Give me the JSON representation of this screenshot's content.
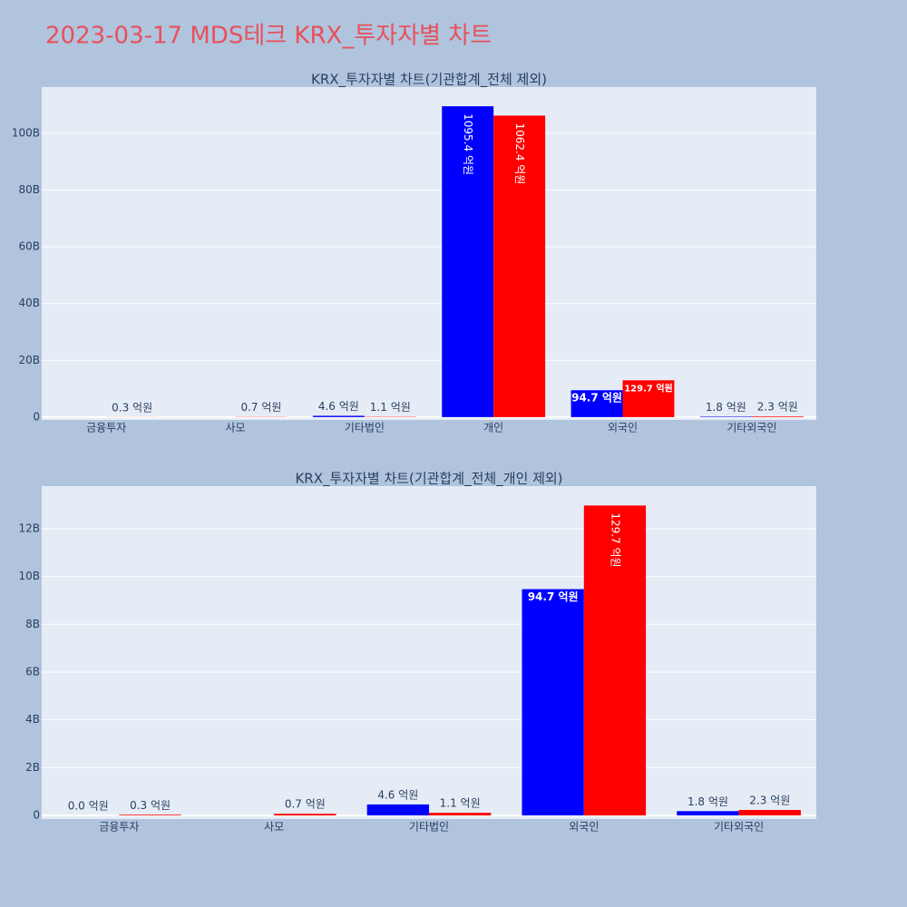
{
  "title": "2023-03-17 MDS테크 KRX_투자자별 차트",
  "chart_data": [
    {
      "type": "bar",
      "title": "KRX_투자자별 차트(기관합계_전체 제외)",
      "categories": [
        "금융투자",
        "사모",
        "기타법인",
        "개인",
        "외국인",
        "기타외국인"
      ],
      "series": [
        {
          "color": "#0000ff",
          "values": [
            0,
            null,
            460000000,
            109540000000,
            9470000000,
            180000000
          ],
          "value_labels": [
            null,
            null,
            "4.6 억원",
            "1095.4 억원",
            "94.7 억원",
            "1.8 억원"
          ]
        },
        {
          "color": "#ff0000",
          "values": [
            30000000,
            70000000,
            110000000,
            106240000000,
            12970000000,
            230000000
          ],
          "value_labels": [
            "0.3 억원",
            "0.7 억원",
            "1.1 억원",
            "1062.4 억원",
            "129.7 억원",
            "2.3 억원"
          ]
        }
      ],
      "ylim": [
        -1000000000,
        116300000000
      ],
      "yticks": [
        0,
        {
          "value": 20000000000,
          "label": "20B"
        },
        {
          "value": 40000000000,
          "label": "40B"
        },
        {
          "value": 60000000000,
          "label": "60B"
        },
        {
          "value": 80000000000,
          "label": "80B"
        },
        {
          "value": 100000000000,
          "label": "100B"
        }
      ],
      "grid": true
    },
    {
      "type": "bar",
      "title": "KRX_투자자별 차트(기관합계_전체_개인 제외)",
      "categories": [
        "금융투자",
        "사모",
        "기타법인",
        "외국인",
        "기타외국인"
      ],
      "series": [
        {
          "color": "#0000ff",
          "values": [
            0,
            null,
            460000000,
            9470000000,
            180000000
          ],
          "value_labels": [
            "0.0 억원",
            null,
            "4.6 억원",
            "94.7 억원",
            "1.8 억원"
          ]
        },
        {
          "color": "#ff0000",
          "values": [
            30000000,
            70000000,
            110000000,
            12970000000,
            230000000
          ],
          "value_labels": [
            "0.3 억원",
            "0.7 억원",
            "1.1 억원",
            "129.7 억원",
            "2.3 억원"
          ]
        }
      ],
      "ylim": [
        -150000000,
        13780000000
      ],
      "yticks": [
        0,
        {
          "value": 2000000000,
          "label": "2B"
        },
        {
          "value": 4000000000,
          "label": "4B"
        },
        {
          "value": 6000000000,
          "label": "6B"
        },
        {
          "value": 8000000000,
          "label": "8B"
        },
        {
          "value": 10000000000,
          "label": "10B"
        },
        {
          "value": 12000000000,
          "label": "12B"
        }
      ],
      "grid": true
    }
  ]
}
